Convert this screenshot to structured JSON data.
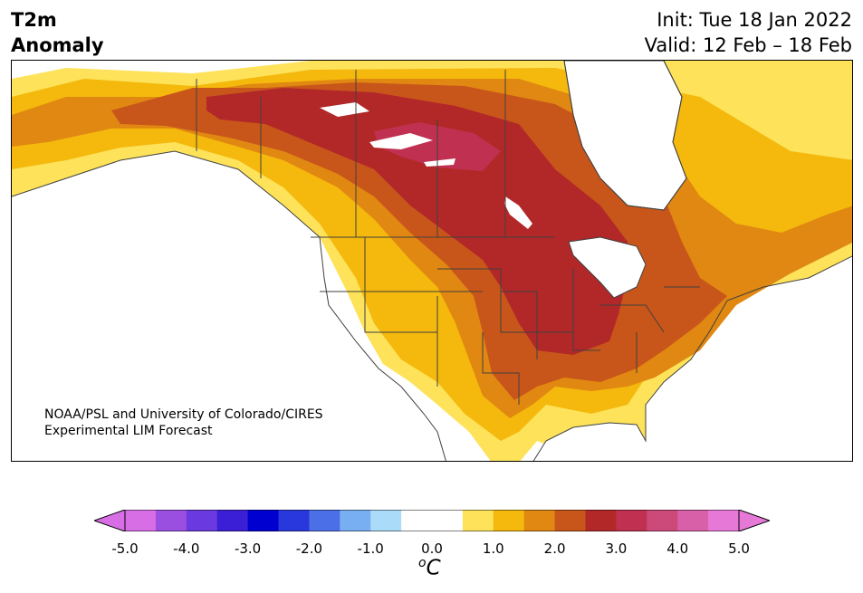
{
  "title": {
    "variable": "T2m",
    "subtitle": "Anomaly",
    "init": "Init: Tue 18 Jan 2022",
    "valid": "Valid: 12 Feb – 18 Feb"
  },
  "credit": {
    "line1": "NOAA/PSL and University of Colorado/CIRES",
    "line2": "Experimental LIM Forecast"
  },
  "colorbar": {
    "unit_base": "C",
    "unit_sup": "o",
    "ticks": [
      "-5.0",
      "-4.0",
      "-3.0",
      "-2.0",
      "-1.0",
      "0.0",
      "1.0",
      "2.0",
      "3.0",
      "4.0",
      "5.0"
    ],
    "colors": [
      "#d86ee6",
      "#9a4fe0",
      "#6a3ae0",
      "#3a1fd6",
      "#0000d0",
      "#2838dc",
      "#4a6fe6",
      "#78aef2",
      "#aadcfa",
      "#ffffff",
      "#ffffff",
      "#fde25a",
      "#f4b90c",
      "#e08812",
      "#c8561a",
      "#b22828",
      "#c03050",
      "#cc4a7a",
      "#d860a8",
      "#e678d8"
    ],
    "under_color": "#d86ee6",
    "over_color": "#e678d8"
  }
}
